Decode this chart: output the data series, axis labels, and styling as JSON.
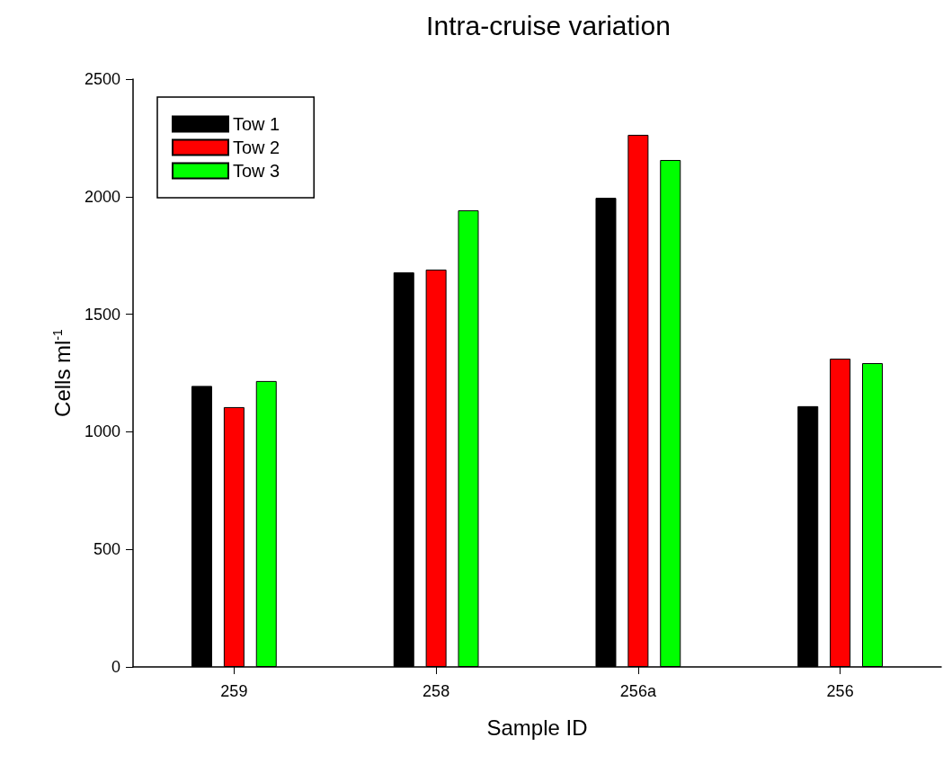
{
  "chart_data": {
    "type": "bar",
    "title": "Intra-cruise variation",
    "xlabel": "Sample ID",
    "ylabel": "Cells ml$^{-1}$",
    "categories": [
      "259",
      "258",
      "256a",
      "256"
    ],
    "series": [
      {
        "name": "Tow 1",
        "color": "#000000",
        "values": [
          1195,
          1678,
          1995,
          1109
        ]
      },
      {
        "name": "Tow 2",
        "color": "#ff0000",
        "values": [
          1105,
          1690,
          2263,
          1311
        ]
      },
      {
        "name": "Tow 3",
        "color": "#00ff00",
        "values": [
          1216,
          1942,
          2156,
          1292
        ]
      }
    ],
    "ylim": [
      0,
      2500
    ],
    "yticks": [
      0,
      500,
      1000,
      1500,
      2000,
      2500
    ],
    "grid": false,
    "legend": "top left"
  }
}
